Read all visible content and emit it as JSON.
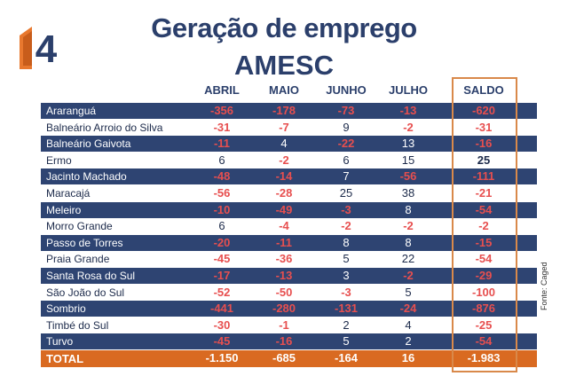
{
  "header": {
    "title_line1": "Geração de emprego",
    "title_line2": "AMESC",
    "logo_text": "4"
  },
  "table": {
    "columns": [
      "ABRIL",
      "MAIO",
      "JUNHO",
      "JULHO",
      "SALDO"
    ],
    "rows": [
      {
        "name": "Araranguá",
        "values": [
          "-356",
          "-178",
          "-73",
          "-13",
          "-620"
        ]
      },
      {
        "name": "Balneário Arroio do Silva",
        "values": [
          "-31",
          "-7",
          "9",
          "-2",
          "-31"
        ]
      },
      {
        "name": "Balneário Gaivota",
        "values": [
          "-11",
          "4",
          "-22",
          "13",
          "-16"
        ]
      },
      {
        "name": "Ermo",
        "values": [
          "6",
          "-2",
          "6",
          "15",
          "25"
        ]
      },
      {
        "name": "Jacinto Machado",
        "values": [
          "-48",
          "-14",
          "7",
          "-56",
          "-111"
        ]
      },
      {
        "name": "Maracajá",
        "values": [
          "-56",
          "-28",
          "25",
          "38",
          "-21"
        ]
      },
      {
        "name": "Meleiro",
        "values": [
          "-10",
          "-49",
          "-3",
          "8",
          "-54"
        ]
      },
      {
        "name": "Morro Grande",
        "values": [
          "6",
          "-4",
          "-2",
          "-2",
          "-2"
        ]
      },
      {
        "name": "Passo de Torres",
        "values": [
          "-20",
          "-11",
          "8",
          "8",
          "-15"
        ]
      },
      {
        "name": "Praia Grande",
        "values": [
          "-45",
          "-36",
          "5",
          "22",
          "-54"
        ]
      },
      {
        "name": "Santa Rosa do Sul",
        "values": [
          "-17",
          "-13",
          "3",
          "-2",
          "-29"
        ]
      },
      {
        "name": "São João do Sul",
        "values": [
          "-52",
          "-50",
          "-3",
          "5",
          "-100"
        ]
      },
      {
        "name": "Sombrio",
        "values": [
          "-441",
          "-280",
          "-131",
          "-24",
          "-876"
        ]
      },
      {
        "name": "Timbé do Sul",
        "values": [
          "-30",
          "-1",
          "2",
          "4",
          "-25"
        ]
      },
      {
        "name": "Turvo",
        "values": [
          "-45",
          "-16",
          "5",
          "2",
          "-54"
        ]
      }
    ],
    "total": {
      "name": "TOTAL",
      "values": [
        "-1.150",
        "-685",
        "-164",
        "16",
        "-1.983"
      ]
    }
  },
  "source": "Fonte: Caged",
  "colors": {
    "navy": "#2e4472",
    "orange": "#d96a21",
    "red": "#e74f4f",
    "title": "#2b3f6b"
  }
}
